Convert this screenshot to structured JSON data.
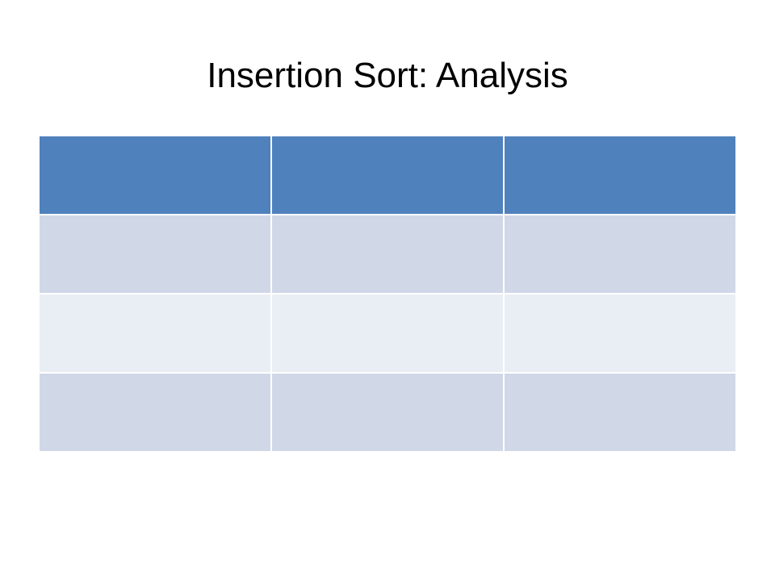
{
  "slide": {
    "title": "Insertion Sort: Analysis"
  },
  "table": {
    "columns": 3,
    "header": [
      "",
      "",
      ""
    ],
    "rows": [
      [
        "",
        "",
        ""
      ],
      [
        "",
        "",
        ""
      ],
      [
        "",
        "",
        ""
      ]
    ]
  },
  "colors": {
    "header_fill": "#4F81BD",
    "band_dark": "#D0D8E8",
    "band_light": "#E9EDF4",
    "cell_border": "#FFFFFF",
    "background": "#FFFFFF",
    "title_text": "#000000"
  }
}
